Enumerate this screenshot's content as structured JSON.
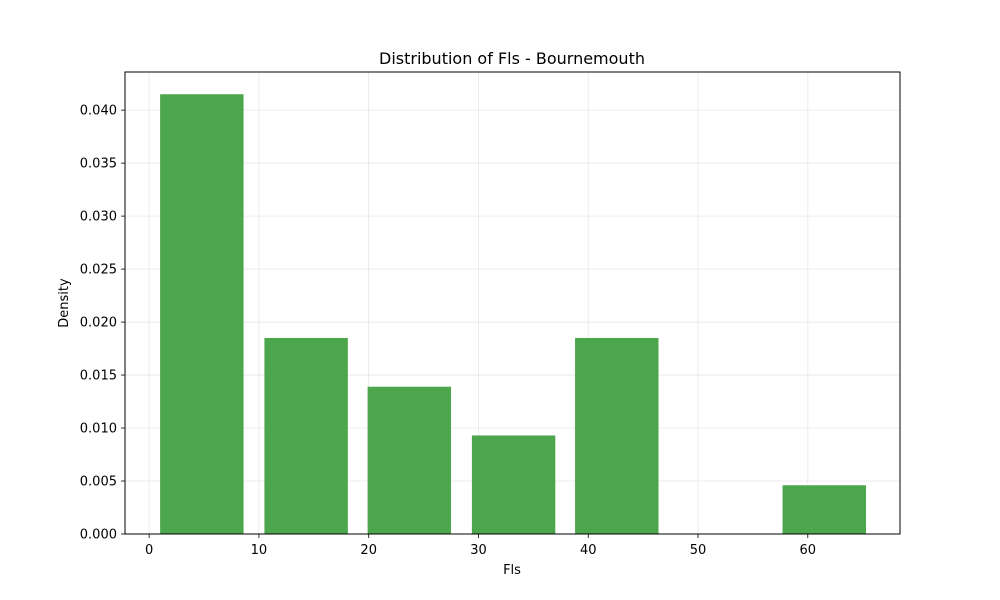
{
  "chart_data": {
    "type": "bar",
    "title": "Distribution of Fls - Bournemouth",
    "xlabel": "Fls",
    "ylabel": "Density",
    "xlim": [
      -2.2,
      68.4
    ],
    "ylim": [
      0,
      0.0436
    ],
    "xticks": [
      0,
      10,
      20,
      30,
      40,
      50,
      60
    ],
    "yticks": [
      "0.000",
      "0.005",
      "0.010",
      "0.015",
      "0.020",
      "0.025",
      "0.030",
      "0.035",
      "0.040"
    ],
    "grid": true,
    "bins": [
      {
        "x0": 1.0,
        "x1": 8.6,
        "value": 0.0415
      },
      {
        "x0": 10.5,
        "x1": 18.1,
        "value": 0.0185
      },
      {
        "x0": 19.9,
        "x1": 27.5,
        "value": 0.0139
      },
      {
        "x0": 29.4,
        "x1": 37.0,
        "value": 0.0093
      },
      {
        "x0": 38.8,
        "x1": 46.4,
        "value": 0.0185
      },
      {
        "x0": 48.3,
        "x1": 55.9,
        "value": 0.0
      },
      {
        "x0": 57.7,
        "x1": 65.3,
        "value": 0.0046
      }
    ],
    "colors": {
      "bar": "#4ca64c"
    }
  }
}
